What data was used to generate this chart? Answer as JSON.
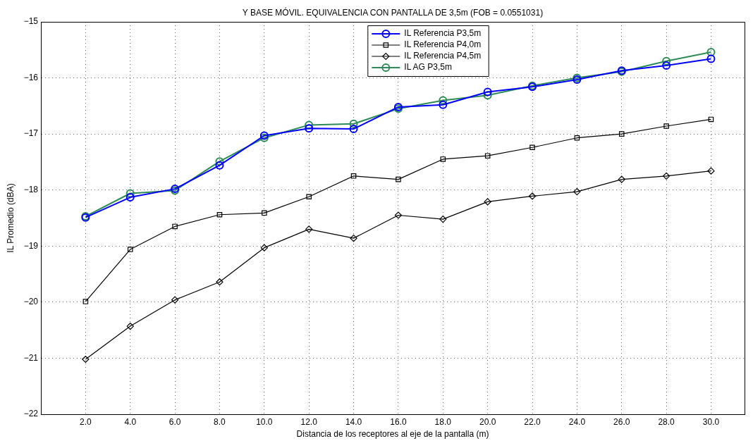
{
  "chart_data": {
    "type": "line",
    "title": "Y BASE MÓVIL. EQUIVALENCIA CON PANTALLA DE 3,5m (FOB = 0.0551031)",
    "xlabel": "Distancia de los receptores al eje de la pantalla (m)",
    "ylabel": "IL Promedio (dBA)",
    "x": [
      2,
      4,
      6,
      8,
      10,
      12,
      14,
      16,
      18,
      20,
      22,
      24,
      26,
      28,
      30
    ],
    "series": [
      {
        "name": "IL Referencia P3,5m",
        "color": "#0000ff",
        "marker": "circle",
        "values": [
          -18.49,
          -18.13,
          -17.98,
          -17.56,
          -17.03,
          -16.9,
          -16.91,
          -16.52,
          -16.48,
          -16.25,
          -16.16,
          -16.03,
          -15.87,
          -15.78,
          -15.66
        ]
      },
      {
        "name": "IL Referencia P4,0m",
        "color": "#000000",
        "marker": "square",
        "values": [
          -19.99,
          -19.06,
          -18.65,
          -18.44,
          -18.41,
          -18.12,
          -17.75,
          -17.81,
          -17.45,
          -17.39,
          -17.24,
          -17.07,
          -17.0,
          -16.86,
          -16.74
        ]
      },
      {
        "name": "IL Referencia P4,5m",
        "color": "#000000",
        "marker": "diamond",
        "values": [
          -21.02,
          -20.43,
          -19.96,
          -19.64,
          -19.03,
          -18.7,
          -18.86,
          -18.45,
          -18.52,
          -18.21,
          -18.11,
          -18.03,
          -17.81,
          -17.75,
          -17.66
        ]
      },
      {
        "name": "IL AG P3,5m",
        "color": "#2e8b57",
        "marker": "circle",
        "values": [
          -18.47,
          -18.06,
          -18.01,
          -17.49,
          -17.07,
          -16.84,
          -16.82,
          -16.55,
          -16.4,
          -16.31,
          -16.14,
          -16.0,
          -15.89,
          -15.7,
          -15.54
        ]
      }
    ],
    "xlim": [
      0,
      31.5
    ],
    "xticks": [
      {
        "value": 2,
        "label": "2.0"
      },
      {
        "value": 4,
        "label": "4.0"
      },
      {
        "value": 6,
        "label": "6.0"
      },
      {
        "value": 8,
        "label": "8.0"
      },
      {
        "value": 10,
        "label": "10.0"
      },
      {
        "value": 12,
        "label": "12.0"
      },
      {
        "value": 14,
        "label": "14.0"
      },
      {
        "value": 16,
        "label": "16.0"
      },
      {
        "value": 18,
        "label": "18.0"
      },
      {
        "value": 20,
        "label": "20.0"
      },
      {
        "value": 22,
        "label": "22.0"
      },
      {
        "value": 24,
        "label": "24.0"
      },
      {
        "value": 26,
        "label": "26.0"
      },
      {
        "value": 28,
        "label": "28.0"
      },
      {
        "value": 30,
        "label": "30.0"
      }
    ],
    "ylim": [
      -22,
      -15
    ],
    "yticks": [
      -22,
      -21,
      -20,
      -19,
      -18,
      -17,
      -16,
      -15
    ],
    "grid": true,
    "legend": "top",
    "line_style": "solid"
  }
}
